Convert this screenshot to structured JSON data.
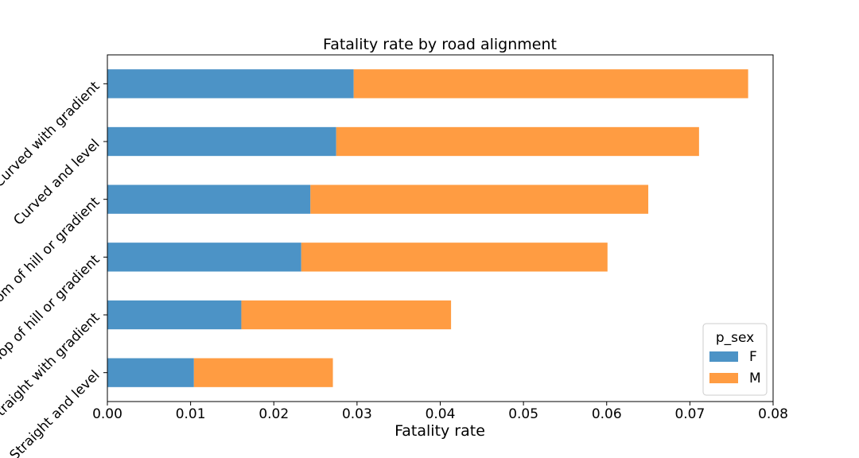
{
  "chart_data": {
    "type": "bar",
    "orientation": "horizontal",
    "stacked": true,
    "title": "Fatality rate by road alignment",
    "xlabel": "Fatality rate",
    "ylabel": "",
    "xlim": [
      0,
      0.08
    ],
    "xticks": [
      "0.00",
      "0.01",
      "0.02",
      "0.03",
      "0.04",
      "0.05",
      "0.06",
      "0.07",
      "0.08"
    ],
    "categories": [
      "Straight and level",
      "Straight with gradient",
      "Top of hill or gradient",
      "Bottom of hill or gradient",
      "Curved and level",
      "Curved with gradient"
    ],
    "series": [
      {
        "name": "F",
        "color": "#4c93c6",
        "values": [
          0.0104,
          0.0161,
          0.0233,
          0.0244,
          0.0275,
          0.0296
        ]
      },
      {
        "name": "M",
        "color": "#ff9c42",
        "values": [
          0.0167,
          0.0252,
          0.0368,
          0.0406,
          0.0436,
          0.0474
        ]
      }
    ],
    "legend": {
      "title": "p_sex",
      "placement": "lower-right"
    },
    "grid": false
  }
}
